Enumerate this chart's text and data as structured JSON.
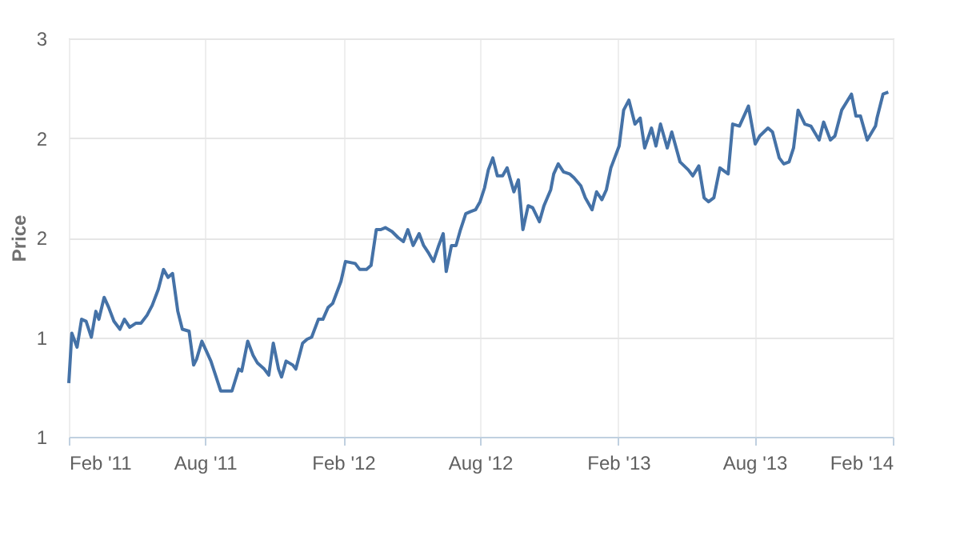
{
  "chart_data": {
    "type": "line",
    "ylabel": "Price",
    "grid": true,
    "marker": "none",
    "line_style": "solid",
    "xlim": [
      "2011-02-01",
      "2014-02-01"
    ],
    "xticks": [
      {
        "value": "2011-02-01",
        "label": "Feb '11"
      },
      {
        "value": "2011-08-01",
        "label": "Aug '11"
      },
      {
        "value": "2012-02-01",
        "label": "Feb '12"
      },
      {
        "value": "2012-08-01",
        "label": "Aug '12"
      },
      {
        "value": "2013-02-01",
        "label": "Feb '13"
      },
      {
        "value": "2013-08-01",
        "label": "Aug '13"
      },
      {
        "value": "2014-02-01",
        "label": "Feb '14"
      }
    ],
    "ylim": [
      1,
      3
    ],
    "yticks": [
      {
        "value": 1,
        "label": "1"
      },
      {
        "value": 1.5,
        "label": "1"
      },
      {
        "value": 2,
        "label": "2"
      },
      {
        "value": 2.5,
        "label": "2"
      },
      {
        "value": 3,
        "label": "3"
      }
    ],
    "x": [
      "2011-02-01",
      "2011-02-05",
      "2011-02-12",
      "2011-02-18",
      "2011-02-24",
      "2011-03-03",
      "2011-03-09",
      "2011-03-13",
      "2011-03-20",
      "2011-03-26",
      "2011-04-02",
      "2011-04-10",
      "2011-04-16",
      "2011-04-23",
      "2011-05-01",
      "2011-05-08",
      "2011-05-16",
      "2011-05-23",
      "2011-05-31",
      "2011-06-07",
      "2011-06-13",
      "2011-06-19",
      "2011-06-26",
      "2011-07-02",
      "2011-07-11",
      "2011-07-17",
      "2011-07-21",
      "2011-07-28",
      "2011-08-03",
      "2011-08-09",
      "2011-08-16",
      "2011-08-22",
      "2011-08-31",
      "2011-09-06",
      "2011-09-15",
      "2011-09-19",
      "2011-09-27",
      "2011-10-04",
      "2011-10-10",
      "2011-10-19",
      "2011-10-25",
      "2011-10-31",
      "2011-11-07",
      "2011-11-11",
      "2011-11-17",
      "2011-11-26",
      "2011-11-30",
      "2011-12-09",
      "2011-12-15",
      "2011-12-21",
      "2011-12-30",
      "2012-01-05",
      "2012-01-12",
      "2012-01-18",
      "2012-01-29",
      "2012-02-04",
      "2012-02-17",
      "2012-02-23",
      "2012-03-03",
      "2012-03-09",
      "2012-03-16",
      "2012-03-22",
      "2012-03-28",
      "2012-04-06",
      "2012-04-14",
      "2012-04-21",
      "2012-04-27",
      "2012-05-04",
      "2012-05-12",
      "2012-05-18",
      "2012-05-25",
      "2012-05-31",
      "2012-06-07",
      "2012-06-13",
      "2012-06-17",
      "2012-06-24",
      "2012-06-30",
      "2012-07-06",
      "2012-07-13",
      "2012-07-19",
      "2012-07-26",
      "2012-08-01",
      "2012-08-07",
      "2012-08-12",
      "2012-08-18",
      "2012-08-24",
      "2012-08-31",
      "2012-09-06",
      "2012-09-15",
      "2012-09-21",
      "2012-09-27",
      "2012-10-04",
      "2012-10-10",
      "2012-10-19",
      "2012-10-25",
      "2012-11-03",
      "2012-11-07",
      "2012-11-13",
      "2012-11-20",
      "2012-11-28",
      "2012-12-04",
      "2012-12-13",
      "2012-12-19",
      "2012-12-28",
      "2013-01-03",
      "2013-01-10",
      "2013-01-16",
      "2013-01-22",
      "2013-02-02",
      "2013-02-08",
      "2013-02-15",
      "2013-02-23",
      "2013-03-02",
      "2013-03-08",
      "2013-03-17",
      "2013-03-23",
      "2013-03-29",
      "2013-04-07",
      "2013-04-13",
      "2013-04-24",
      "2013-05-05",
      "2013-05-11",
      "2013-05-19",
      "2013-05-26",
      "2013-06-01",
      "2013-06-08",
      "2013-06-16",
      "2013-06-27",
      "2013-07-03",
      "2013-07-12",
      "2013-07-18",
      "2013-07-24",
      "2013-08-02",
      "2013-08-08",
      "2013-08-19",
      "2013-08-25",
      "2013-09-03",
      "2013-09-09",
      "2013-09-16",
      "2013-09-22",
      "2013-09-28",
      "2013-10-07",
      "2013-10-15",
      "2013-10-26",
      "2013-11-01",
      "2013-11-10",
      "2013-11-16",
      "2013-11-25",
      "2013-12-08",
      "2013-12-14",
      "2013-12-20",
      "2013-12-29",
      "2014-01-09",
      "2014-01-11",
      "2014-01-19",
      "2014-01-26"
    ],
    "series": [
      {
        "color": "#4572a7",
        "values": [
          1.27,
          1.52,
          1.45,
          1.59,
          1.58,
          1.5,
          1.63,
          1.59,
          1.7,
          1.65,
          1.58,
          1.54,
          1.59,
          1.55,
          1.57,
          1.57,
          1.61,
          1.66,
          1.74,
          1.84,
          1.8,
          1.82,
          1.63,
          1.54,
          1.53,
          1.36,
          1.39,
          1.48,
          1.43,
          1.38,
          1.3,
          1.23,
          1.23,
          1.23,
          1.34,
          1.33,
          1.48,
          1.41,
          1.37,
          1.34,
          1.31,
          1.47,
          1.34,
          1.3,
          1.38,
          1.36,
          1.34,
          1.47,
          1.49,
          1.5,
          1.59,
          1.59,
          1.65,
          1.67,
          1.78,
          1.88,
          1.87,
          1.84,
          1.84,
          1.86,
          2.04,
          2.04,
          2.05,
          2.03,
          2.0,
          1.98,
          2.04,
          1.96,
          2.02,
          1.96,
          1.92,
          1.88,
          1.96,
          2.02,
          1.83,
          1.96,
          1.96,
          2.04,
          2.12,
          2.13,
          2.14,
          2.18,
          2.25,
          2.34,
          2.4,
          2.31,
          2.31,
          2.35,
          2.23,
          2.29,
          2.04,
          2.16,
          2.15,
          2.08,
          2.16,
          2.24,
          2.32,
          2.37,
          2.33,
          2.32,
          2.3,
          2.26,
          2.2,
          2.14,
          2.23,
          2.19,
          2.24,
          2.35,
          2.46,
          2.64,
          2.69,
          2.57,
          2.6,
          2.45,
          2.55,
          2.46,
          2.57,
          2.45,
          2.53,
          2.38,
          2.34,
          2.31,
          2.36,
          2.2,
          2.18,
          2.2,
          2.35,
          2.32,
          2.57,
          2.56,
          2.61,
          2.66,
          2.47,
          2.51,
          2.55,
          2.53,
          2.4,
          2.37,
          2.38,
          2.45,
          2.64,
          2.57,
          2.56,
          2.49,
          2.58,
          2.49,
          2.51,
          2.64,
          2.72,
          2.61,
          2.61,
          2.49,
          2.56,
          2.6,
          2.72,
          2.73
        ]
      }
    ]
  }
}
